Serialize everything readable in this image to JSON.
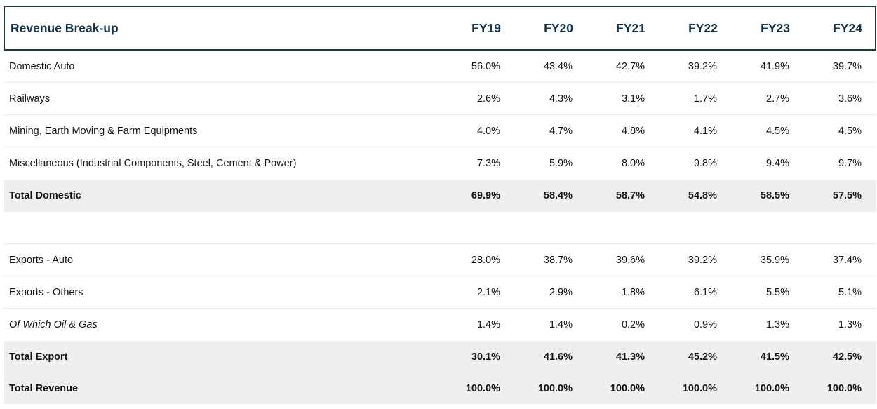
{
  "table": {
    "title": "Revenue Break-up",
    "years": [
      "FY19",
      "FY20",
      "FY21",
      "FY22",
      "FY23",
      "FY24"
    ],
    "rows": [
      {
        "label": "Domestic Auto",
        "values": [
          "56.0%",
          "43.4%",
          "42.7%",
          "39.2%",
          "41.9%",
          "39.7%"
        ]
      },
      {
        "label": "Railways",
        "values": [
          "2.6%",
          "4.3%",
          "3.1%",
          "1.7%",
          "2.7%",
          "3.6%"
        ]
      },
      {
        "label": "Mining, Earth Moving & Farm Equipments",
        "values": [
          "4.0%",
          "4.7%",
          "4.8%",
          "4.1%",
          "4.5%",
          "4.5%"
        ]
      },
      {
        "label": "Miscellaneous (Industrial Components,  Steel, Cement & Power)",
        "values": [
          "7.3%",
          "5.9%",
          "8.0%",
          "9.8%",
          "9.4%",
          "9.7%"
        ]
      },
      {
        "label": "Total Domestic",
        "values": [
          "69.9%",
          "58.4%",
          "58.7%",
          "54.8%",
          "58.5%",
          "57.5%"
        ]
      },
      {
        "label": "Exports - Auto",
        "values": [
          "28.0%",
          "38.7%",
          "39.6%",
          "39.2%",
          "35.9%",
          "37.4%"
        ]
      },
      {
        "label": "Exports - Others",
        "values": [
          "2.1%",
          "2.9%",
          "1.8%",
          "6.1%",
          "5.5%",
          "5.1%"
        ]
      },
      {
        "label": "Of Which Oil & Gas",
        "values": [
          "1.4%",
          "1.4%",
          "0.2%",
          "0.9%",
          "1.3%",
          "1.3%"
        ]
      },
      {
        "label": "Total Export",
        "values": [
          "30.1%",
          "41.6%",
          "41.3%",
          "45.2%",
          "41.5%",
          "42.5%"
        ]
      },
      {
        "label": "Total Revenue",
        "values": [
          "100.0%",
          "100.0%",
          "100.0%",
          "100.0%",
          "100.0%",
          "100.0%"
        ]
      }
    ]
  }
}
